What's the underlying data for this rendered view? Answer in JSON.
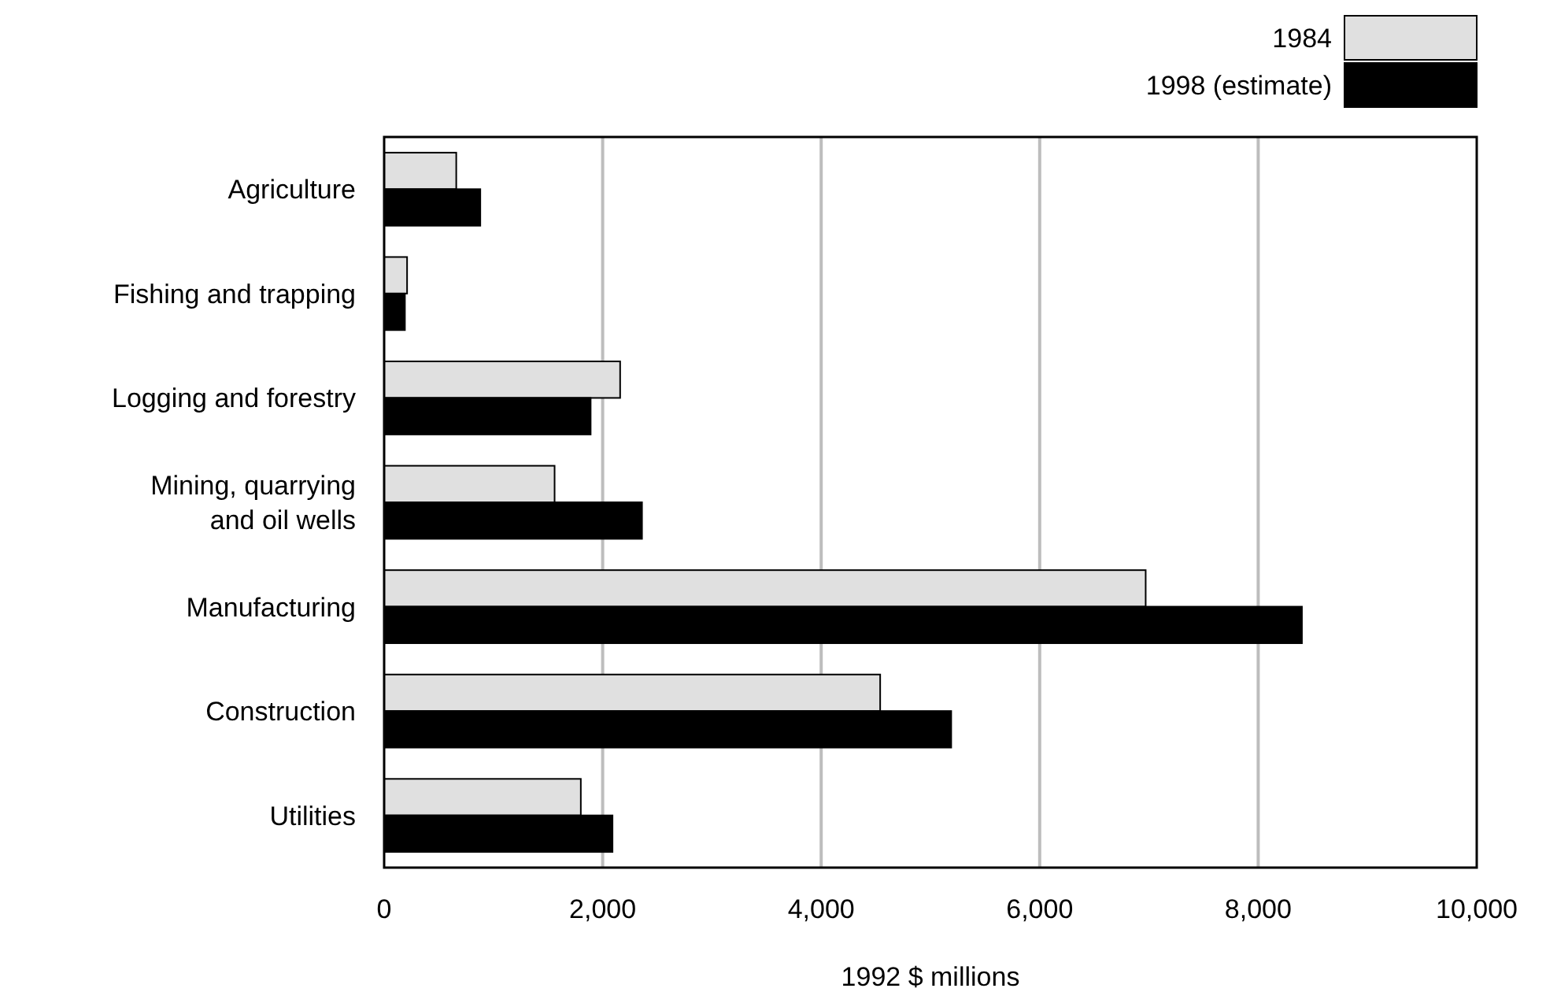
{
  "chart_data": {
    "type": "bar",
    "orientation": "horizontal",
    "xlabel": "1992 $ millions",
    "categories": [
      "Agriculture",
      "Fishing and trapping",
      "Logging and forestry",
      "Mining, quarrying and oil wells",
      "Manufacturing",
      "Construction",
      "Utilities"
    ],
    "series": [
      {
        "name": "1984",
        "color": "#e0e0e0",
        "values": [
          660,
          210,
          2160,
          1560,
          6970,
          4540,
          1800
        ]
      },
      {
        "name": "1998 (estimate)",
        "color": "#000000",
        "values": [
          880,
          190,
          1890,
          2360,
          8400,
          5190,
          2090
        ]
      }
    ],
    "xlim": [
      0,
      10000
    ],
    "xticks": [
      0,
      {
        "value": 2000,
        "label": "2,000"
      },
      {
        "value": 4000,
        "label": "4,000"
      },
      {
        "value": 6000,
        "label": "6,000"
      },
      {
        "value": 8000,
        "label": "8,000"
      },
      {
        "value": 10000,
        "label": "10,000"
      }
    ],
    "grid": "x",
    "legend": "top right"
  }
}
